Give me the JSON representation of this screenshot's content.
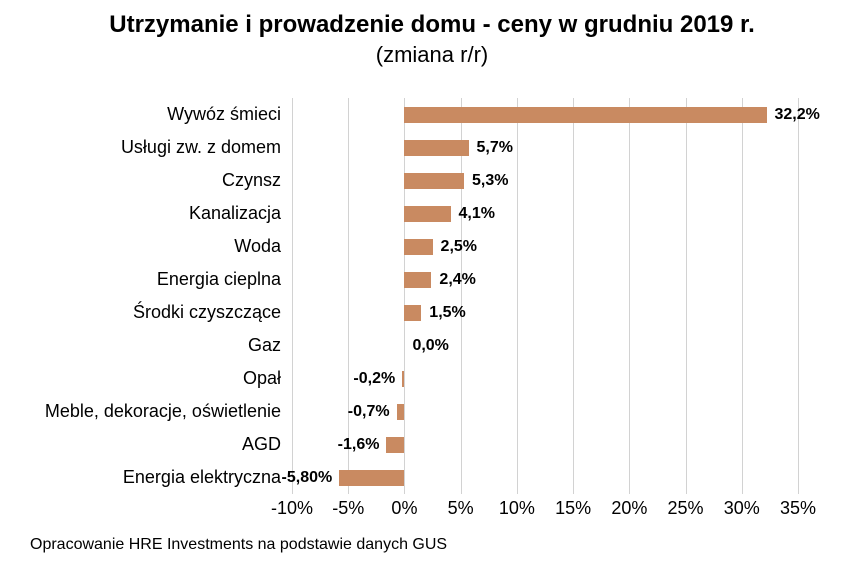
{
  "title": "Utrzymanie i prowadzenie domu - ceny w grudniu 2019 r.",
  "subtitle": "(zmiana r/r)",
  "source": "Opracowanie HRE Investments na podstawie danych GUS",
  "colors": {
    "bar": "#c98a61",
    "gridline": "#d2d2d2",
    "text": "#000000",
    "background": "#ffffff"
  },
  "chart_data": {
    "type": "bar",
    "orientation": "horizontal",
    "title": "Utrzymanie i prowadzenie domu - ceny w grudniu 2019 r.",
    "subtitle": "(zmiana r/r)",
    "categories": [
      "Wywóz śmieci",
      "Usługi zw. z domem",
      "Czynsz",
      "Kanalizacja",
      "Woda",
      "Energia cieplna",
      "Środki czyszczące",
      "Gaz",
      "Opał",
      "Meble, dekoracje, oświetlenie",
      "AGD",
      "Energia elektryczna"
    ],
    "values": [
      32.2,
      5.7,
      5.3,
      4.1,
      2.5,
      2.4,
      1.5,
      0.0,
      -0.2,
      -0.7,
      -1.6,
      -5.8
    ],
    "value_labels": [
      "32,2%",
      "5,7%",
      "5,3%",
      "4,1%",
      "2,5%",
      "2,4%",
      "1,5%",
      "0,0%",
      "-0,2%",
      "-0,7%",
      "-1,6%",
      "-5,80%"
    ],
    "xlabel": "",
    "ylabel": "",
    "xlim": [
      -10,
      35
    ],
    "x_ticks": [
      -10,
      -5,
      0,
      5,
      10,
      15,
      20,
      25,
      30,
      35
    ],
    "x_tick_labels": [
      "-10%",
      "-5%",
      "0%",
      "5%",
      "10%",
      "15%",
      "20%",
      "25%",
      "30%",
      "35%"
    ],
    "grid": true,
    "legend": false
  }
}
